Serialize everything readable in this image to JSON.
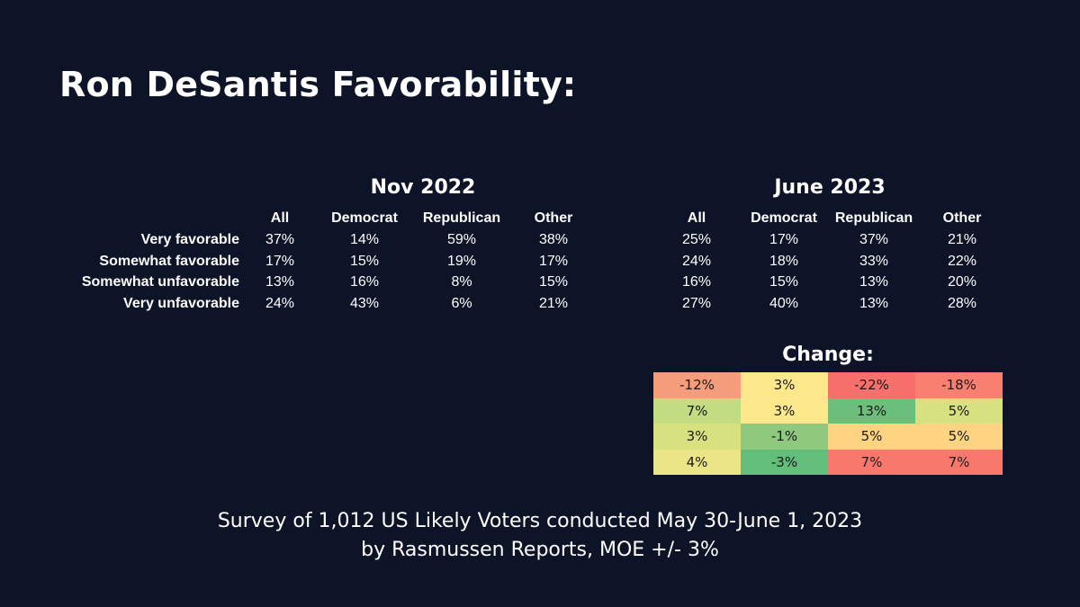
{
  "title": "Ron DeSantis Favorability:",
  "footer": {
    "line1": "Survey of 1,012 US Likely Voters conducted May 30-June 1, 2023",
    "line2": "by Rasmussen Reports, MOE +/- 3%"
  },
  "chart_data": [
    {
      "type": "table",
      "title": "Nov 2022",
      "columns": [
        "All",
        "Democrat",
        "Republican",
        "Other"
      ],
      "rows": [
        "Very favorable",
        "Somewhat favorable",
        "Somewhat unfavorable",
        "Very unfavorable"
      ],
      "values": [
        [
          "37%",
          "14%",
          "59%",
          "38%"
        ],
        [
          "17%",
          "15%",
          "19%",
          "17%"
        ],
        [
          "13%",
          "16%",
          "8%",
          "15%"
        ],
        [
          "24%",
          "43%",
          "6%",
          "21%"
        ]
      ]
    },
    {
      "type": "table",
      "title": "June 2023",
      "columns": [
        "All",
        "Democrat",
        "Republican",
        "Other"
      ],
      "rows": [
        "Very favorable",
        "Somewhat favorable",
        "Somewhat unfavorable",
        "Very unfavorable"
      ],
      "values": [
        [
          "25%",
          "17%",
          "37%",
          "21%"
        ],
        [
          "24%",
          "18%",
          "33%",
          "22%"
        ],
        [
          "16%",
          "15%",
          "13%",
          "20%"
        ],
        [
          "27%",
          "40%",
          "13%",
          "28%"
        ]
      ]
    },
    {
      "type": "heatmap",
      "title": "Change:",
      "values": [
        [
          "-12%",
          "3%",
          "-22%",
          "-18%"
        ],
        [
          "7%",
          "3%",
          "13%",
          "5%"
        ],
        [
          "3%",
          "-1%",
          "5%",
          "5%"
        ],
        [
          "4%",
          "-3%",
          "7%",
          "7%"
        ]
      ],
      "colors": [
        [
          "#f59c7b",
          "#fde98c",
          "#f8706b",
          "#f97f71"
        ],
        [
          "#c2dd81",
          "#fde98c",
          "#6bbf7b",
          "#d7e17f"
        ],
        [
          "#d8e17f",
          "#8fc97d",
          "#fed382",
          "#fed382"
        ],
        [
          "#ebe587",
          "#63be7b",
          "#f9786d",
          "#f9786d"
        ]
      ]
    }
  ]
}
